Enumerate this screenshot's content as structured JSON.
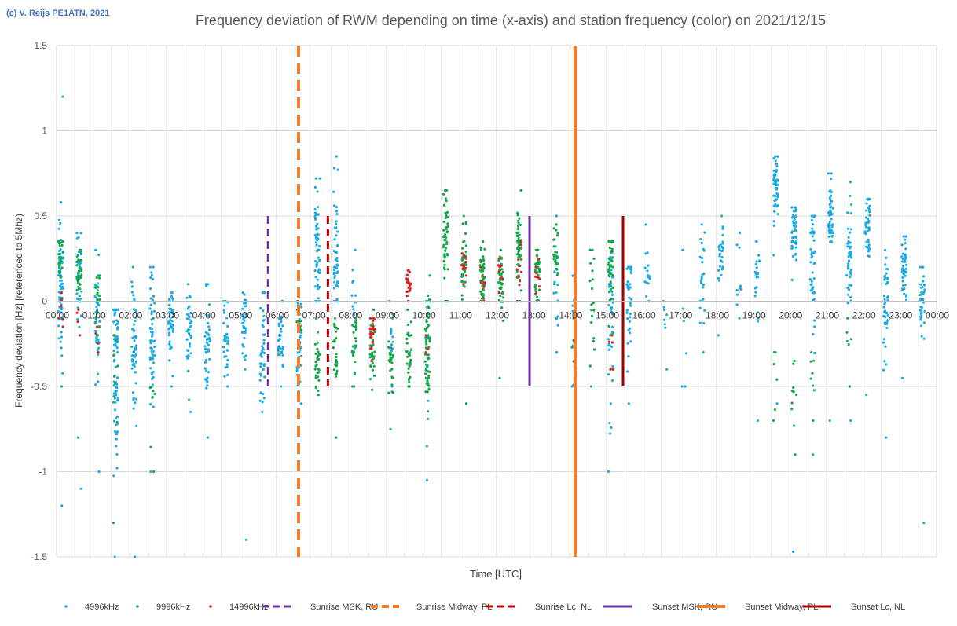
{
  "copyright": "(c) V. Reijs PE1ATN, 2021",
  "chart_data": {
    "type": "scatter",
    "title": "Frequency deviation of RWM depending on time (x-axis) and station frequency (color) on 2021/12/15",
    "xlabel": "Time [UTC]",
    "ylabel": "Frequency deviation [Hz] [referenced to 5Mhz)",
    "xlim": [
      0,
      24
    ],
    "ylim": [
      -1.5,
      1.5
    ],
    "yticks": [
      -1.5,
      -1,
      -0.5,
      0,
      0.5,
      1,
      1.5
    ],
    "ytick_labels": [
      "-1.5",
      "-1",
      "-0.5",
      "0",
      "0.5",
      "1",
      "1.5"
    ],
    "xtick_labels": [
      "00:00",
      "01:00",
      "02:00",
      "03:00",
      "04:00",
      "05:00",
      "06:00",
      "07:00",
      "08:00",
      "09:00",
      "10:00",
      "11:00",
      "12:00",
      "13:00",
      "14:00",
      "15:00",
      "16:00",
      "17:00",
      "18:00",
      "19:00",
      "20:00",
      "21:00",
      "22:00",
      "23:00",
      "00:00"
    ],
    "grid": true,
    "legend_position": "bottom",
    "colors": {
      "4996kHz": "#1cace4",
      "9996kHz": "#13a84b",
      "14996kHz": "#e02020",
      "Sunrise MSK, RU": "#7030a0",
      "Sunrise Midway, PL": "#ed7d31",
      "Sunrise Lc, NL": "#c00000",
      "Sunset MSK, RU": "#7030a0",
      "Sunset Midway, PL": "#ed7d31",
      "Sunset Lc, NL": "#a50000"
    },
    "series": [
      {
        "name": "4996kHz",
        "kind": "scatter",
        "clusters": [
          {
            "t": 0.05,
            "mean": 0.1,
            "sd": 0.18,
            "n": 70,
            "min": -1.2,
            "max": 1.2
          },
          {
            "t": 0.55,
            "mean": 0.1,
            "sd": 0.15,
            "n": 35,
            "min": -1.1,
            "max": 0.4
          },
          {
            "t": 1.05,
            "mean": -0.1,
            "sd": 0.18,
            "n": 40,
            "min": -1.0,
            "max": 0.3
          },
          {
            "t": 1.55,
            "mean": -0.35,
            "sd": 0.25,
            "n": 80,
            "min": -1.5,
            "max": -0.05
          },
          {
            "t": 2.05,
            "mean": -0.3,
            "sd": 0.2,
            "n": 60,
            "min": -1.5,
            "max": 0.2
          },
          {
            "t": 2.55,
            "mean": -0.2,
            "sd": 0.2,
            "n": 55,
            "min": -1.0,
            "max": 0.2
          },
          {
            "t": 3.05,
            "mean": -0.15,
            "sd": 0.12,
            "n": 45,
            "min": -0.5,
            "max": 0.05
          },
          {
            "t": 3.55,
            "mean": -0.18,
            "sd": 0.12,
            "n": 40,
            "min": -0.65,
            "max": 0.1
          },
          {
            "t": 4.05,
            "mean": -0.25,
            "sd": 0.15,
            "n": 40,
            "min": -0.8,
            "max": 0.1
          },
          {
            "t": 4.55,
            "mean": -0.25,
            "sd": 0.1,
            "n": 35,
            "min": -0.5,
            "max": 0.0
          },
          {
            "t": 5.05,
            "mean": -0.15,
            "sd": 0.12,
            "n": 35,
            "min": -1.4,
            "max": 0.05
          },
          {
            "t": 5.55,
            "mean": -0.3,
            "sd": 0.15,
            "n": 40,
            "min": -0.65,
            "max": 0.05
          },
          {
            "t": 6.05,
            "mean": -0.2,
            "sd": 0.1,
            "n": 40,
            "min": -0.5,
            "max": 0.0
          },
          {
            "t": 6.55,
            "mean": -0.3,
            "sd": 0.15,
            "n": 40,
            "min": -0.6,
            "max": 0.0
          },
          {
            "t": 7.05,
            "mean": 0.35,
            "sd": 0.2,
            "n": 55,
            "min": 0.0,
            "max": 0.72
          },
          {
            "t": 7.55,
            "mean": 0.25,
            "sd": 0.2,
            "n": 50,
            "min": 0.0,
            "max": 0.85
          },
          {
            "t": 8.05,
            "mean": -0.1,
            "sd": 0.15,
            "n": 15,
            "min": -0.3,
            "max": 0.3
          },
          {
            "t": 9.05,
            "mean": -0.2,
            "sd": 0.15,
            "n": 15,
            "min": -0.5,
            "max": 0.0
          },
          {
            "t": 10.05,
            "mean": -0.2,
            "sd": 0.2,
            "n": 15,
            "min": -1.05,
            "max": 0.0
          },
          {
            "t": 13.55,
            "mean": 0.1,
            "sd": 0.2,
            "n": 15,
            "min": -0.3,
            "max": 0.5
          },
          {
            "t": 14.05,
            "mean": -0.1,
            "sd": 0.2,
            "n": 12,
            "min": -0.5,
            "max": 0.3
          },
          {
            "t": 15.05,
            "mean": -0.1,
            "sd": 0.3,
            "n": 50,
            "min": -1.0,
            "max": 0.35
          },
          {
            "t": 15.55,
            "mean": 0.0,
            "sd": 0.2,
            "n": 40,
            "min": -0.6,
            "max": 0.2
          },
          {
            "t": 16.05,
            "mean": 0.15,
            "sd": 0.08,
            "n": 15,
            "min": 0.0,
            "max": 0.45
          },
          {
            "t": 16.55,
            "mean": -0.1,
            "sd": 0.1,
            "n": 8,
            "min": -0.4,
            "max": 0.0
          },
          {
            "t": 17.05,
            "mean": -0.2,
            "sd": 0.2,
            "n": 6,
            "min": -0.5,
            "max": 0.3
          },
          {
            "t": 17.55,
            "mean": 0.1,
            "sd": 0.15,
            "n": 25,
            "min": -0.3,
            "max": 0.45
          },
          {
            "t": 18.05,
            "mean": 0.25,
            "sd": 0.1,
            "n": 30,
            "min": -0.2,
            "max": 0.5
          },
          {
            "t": 18.55,
            "mean": 0.15,
            "sd": 0.1,
            "n": 10,
            "min": -0.1,
            "max": 0.4
          },
          {
            "t": 19.05,
            "mean": 0.15,
            "sd": 0.12,
            "n": 25,
            "min": -0.7,
            "max": 0.35
          },
          {
            "t": 19.55,
            "mean": 0.65,
            "sd": 0.1,
            "n": 50,
            "min": -0.6,
            "max": 0.85
          },
          {
            "t": 20.05,
            "mean": 0.4,
            "sd": 0.1,
            "n": 45,
            "min": -1.47,
            "max": 0.55
          },
          {
            "t": 20.55,
            "mean": 0.25,
            "sd": 0.2,
            "n": 45,
            "min": -0.9,
            "max": 0.5
          },
          {
            "t": 21.05,
            "mean": 0.5,
            "sd": 0.12,
            "n": 50,
            "min": -0.7,
            "max": 0.75
          },
          {
            "t": 21.55,
            "mean": 0.25,
            "sd": 0.15,
            "n": 45,
            "min": -0.7,
            "max": 0.7
          },
          {
            "t": 22.05,
            "mean": 0.45,
            "sd": 0.1,
            "n": 45,
            "min": -0.55,
            "max": 0.6
          },
          {
            "t": 22.55,
            "mean": 0.0,
            "sd": 0.15,
            "n": 45,
            "min": -0.8,
            "max": 0.3
          },
          {
            "t": 23.05,
            "mean": 0.2,
            "sd": 0.1,
            "n": 45,
            "min": -0.45,
            "max": 0.38
          },
          {
            "t": 23.55,
            "mean": 0.0,
            "sd": 0.1,
            "n": 40,
            "min": -1.3,
            "max": 0.2
          }
        ]
      },
      {
        "name": "9996kHz",
        "kind": "scatter",
        "clusters": [
          {
            "t": 0.05,
            "mean": 0.25,
            "sd": 0.08,
            "n": 25,
            "min": -0.5,
            "max": 0.35
          },
          {
            "t": 0.55,
            "mean": 0.15,
            "sd": 0.1,
            "n": 30,
            "min": -0.8,
            "max": 0.3
          },
          {
            "t": 1.05,
            "mean": 0.05,
            "sd": 0.1,
            "n": 20,
            "min": -0.2,
            "max": 0.15
          },
          {
            "t": 1.55,
            "mean": -0.5,
            "sd": 0.2,
            "n": 10,
            "min": -1.3,
            "max": -0.2
          },
          {
            "t": 2.55,
            "mean": -0.5,
            "sd": 0.2,
            "n": 8,
            "min": -1.0,
            "max": -0.1
          },
          {
            "t": 6.55,
            "mean": -0.15,
            "sd": 0.05,
            "n": 15,
            "min": -0.25,
            "max": -0.05
          },
          {
            "t": 7.05,
            "mean": -0.35,
            "sd": 0.08,
            "n": 30,
            "min": -0.55,
            "max": -0.1
          },
          {
            "t": 7.55,
            "mean": -0.3,
            "sd": 0.1,
            "n": 25,
            "min": -0.8,
            "max": -0.1
          },
          {
            "t": 8.05,
            "mean": -0.25,
            "sd": 0.1,
            "n": 25,
            "min": -0.5,
            "max": -0.1
          },
          {
            "t": 8.55,
            "mean": -0.3,
            "sd": 0.1,
            "n": 35,
            "min": -0.52,
            "max": -0.05
          },
          {
            "t": 9.05,
            "mean": -0.35,
            "sd": 0.1,
            "n": 25,
            "min": -0.75,
            "max": -0.1
          },
          {
            "t": 9.55,
            "mean": -0.3,
            "sd": 0.1,
            "n": 35,
            "min": -0.5,
            "max": -0.05
          },
          {
            "t": 10.05,
            "mean": -0.35,
            "sd": 0.2,
            "n": 55,
            "min": -0.85,
            "max": 0.15
          },
          {
            "t": 10.55,
            "mean": 0.35,
            "sd": 0.15,
            "n": 50,
            "min": 0.0,
            "max": 0.65
          },
          {
            "t": 11.05,
            "mean": 0.25,
            "sd": 0.1,
            "n": 45,
            "min": -0.6,
            "max": 0.5
          },
          {
            "t": 11.55,
            "mean": 0.15,
            "sd": 0.08,
            "n": 50,
            "min": 0.0,
            "max": 0.35
          },
          {
            "t": 12.05,
            "mean": 0.1,
            "sd": 0.1,
            "n": 40,
            "min": -0.45,
            "max": 0.3
          },
          {
            "t": 12.55,
            "mean": 0.35,
            "sd": 0.12,
            "n": 55,
            "min": 0.0,
            "max": 0.65
          },
          {
            "t": 13.05,
            "mean": 0.15,
            "sd": 0.08,
            "n": 40,
            "min": 0.0,
            "max": 0.3
          },
          {
            "t": 13.55,
            "mean": 0.28,
            "sd": 0.08,
            "n": 30,
            "min": 0.1,
            "max": 0.45
          },
          {
            "t": 14.05,
            "mean": -0.25,
            "sd": 0.08,
            "n": 10,
            "min": -0.45,
            "max": -0.1
          },
          {
            "t": 14.55,
            "mean": 0.0,
            "sd": 0.2,
            "n": 20,
            "min": -0.5,
            "max": 0.3
          },
          {
            "t": 15.05,
            "mean": 0.2,
            "sd": 0.15,
            "n": 45,
            "min": -0.2,
            "max": 0.35
          },
          {
            "t": 19.55,
            "mean": -0.5,
            "sd": 0.1,
            "n": 6,
            "min": -0.7,
            "max": -0.3
          },
          {
            "t": 20.05,
            "mean": -0.6,
            "sd": 0.15,
            "n": 10,
            "min": -0.9,
            "max": -0.35
          },
          {
            "t": 20.55,
            "mean": -0.45,
            "sd": 0.1,
            "n": 8,
            "min": -0.7,
            "max": -0.3
          },
          {
            "t": 21.55,
            "mean": -0.3,
            "sd": 0.1,
            "n": 6,
            "min": -0.5,
            "max": -0.1
          }
        ]
      },
      {
        "name": "14996kHz",
        "kind": "scatter",
        "clusters": [
          {
            "t": 0.05,
            "mean": -0.05,
            "sd": 0.05,
            "n": 6,
            "min": -0.15,
            "max": 0.05
          },
          {
            "t": 0.55,
            "mean": -0.12,
            "sd": 0.03,
            "n": 4,
            "min": -0.2,
            "max": -0.05
          },
          {
            "t": 1.05,
            "mean": -0.22,
            "sd": 0.03,
            "n": 4,
            "min": -0.3,
            "max": -0.15
          },
          {
            "t": 8.55,
            "mean": -0.2,
            "sd": 0.05,
            "n": 25,
            "min": -0.35,
            "max": -0.1
          },
          {
            "t": 9.55,
            "mean": 0.1,
            "sd": 0.04,
            "n": 25,
            "min": 0.0,
            "max": 0.18
          },
          {
            "t": 10.05,
            "mean": -0.25,
            "sd": 0.03,
            "n": 3,
            "min": -0.3,
            "max": -0.2
          },
          {
            "t": 11.05,
            "mean": 0.2,
            "sd": 0.05,
            "n": 12,
            "min": 0.1,
            "max": 0.28
          },
          {
            "t": 11.55,
            "mean": 0.1,
            "sd": 0.05,
            "n": 8,
            "min": 0.0,
            "max": 0.2
          },
          {
            "t": 12.05,
            "mean": 0.15,
            "sd": 0.05,
            "n": 8,
            "min": 0.05,
            "max": 0.25
          },
          {
            "t": 12.55,
            "mean": 0.2,
            "sd": 0.08,
            "n": 10,
            "min": 0.0,
            "max": 0.35
          },
          {
            "t": 13.05,
            "mean": 0.15,
            "sd": 0.05,
            "n": 8,
            "min": 0.05,
            "max": 0.25
          },
          {
            "t": 15.05,
            "mean": -0.3,
            "sd": 0.05,
            "n": 5,
            "min": -0.4,
            "max": -0.2
          }
        ]
      },
      {
        "name": "Sunrise MSK, RU",
        "kind": "vline",
        "x": 5.77,
        "y": [
          -0.5,
          0.5
        ],
        "style": "dashed",
        "width": 3
      },
      {
        "name": "Sunrise Midway, PL",
        "kind": "vline",
        "x": 6.6,
        "y": [
          -1.5,
          1.5
        ],
        "style": "dashed",
        "width": 4
      },
      {
        "name": "Sunrise Lc, NL",
        "kind": "vline",
        "x": 7.4,
        "y": [
          -0.5,
          0.5
        ],
        "style": "dashed",
        "width": 3
      },
      {
        "name": "Sunset MSK, RU",
        "kind": "vline",
        "x": 12.9,
        "y": [
          -0.5,
          0.5
        ],
        "style": "solid",
        "width": 3
      },
      {
        "name": "Sunset Midway, PL",
        "kind": "vline",
        "x": 14.15,
        "y": [
          -1.5,
          1.5
        ],
        "style": "solid",
        "width": 5
      },
      {
        "name": "Sunset Lc, NL",
        "kind": "vline",
        "x": 15.45,
        "y": [
          -0.5,
          0.5
        ],
        "style": "solid",
        "width": 3
      }
    ],
    "legend": [
      "4996kHz",
      "9996kHz",
      "14996kHz",
      "Sunrise MSK, RU",
      "Sunrise Midway, PL",
      "Sunrise Lc, NL",
      "Sunset MSK, RU",
      "Sunset Midway, PL",
      "Sunset Lc, NL"
    ]
  }
}
